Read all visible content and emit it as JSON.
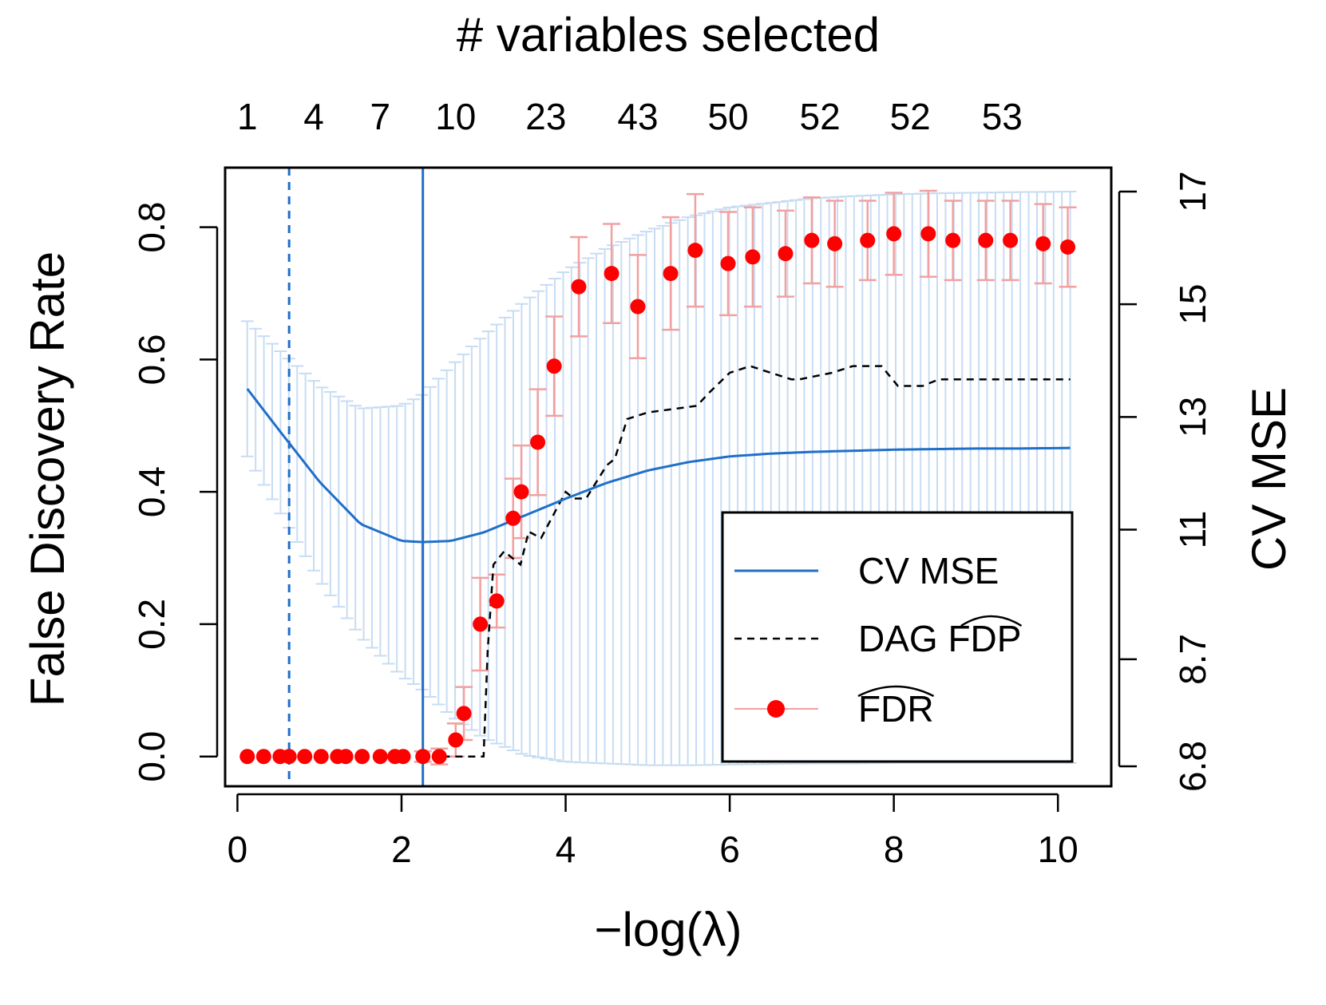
{
  "chart_data": {
    "type": "line",
    "title": "# variables selected",
    "xlabel": "−log(λ)",
    "ylabel_left": "False Discovery Rate",
    "ylabel_right": "CV MSE",
    "xlim": [
      -0.15,
      10.65
    ],
    "ylim_left": [
      -0.045,
      0.89
    ],
    "ylim_right": [
      6.8,
      17
    ],
    "x_ticks": [
      {
        "value": 0,
        "label": "0"
      },
      {
        "value": 2,
        "label": "2"
      },
      {
        "value": 4,
        "label": "4"
      },
      {
        "value": 6,
        "label": "6"
      },
      {
        "value": 8,
        "label": "8"
      },
      {
        "value": 10,
        "label": "10"
      }
    ],
    "y_ticks_left": [
      {
        "value": 0.0,
        "label": "0.0"
      },
      {
        "value": 0.2,
        "label": "0.2"
      },
      {
        "value": 0.4,
        "label": "0.4"
      },
      {
        "value": 0.6,
        "label": "0.6"
      },
      {
        "value": 0.8,
        "label": "0.8"
      }
    ],
    "y_ticks_right": [
      {
        "value": 6.8,
        "label": "6.8"
      },
      {
        "value": 8.7,
        "label": "8.7"
      },
      {
        "value": 11,
        "label": "11"
      },
      {
        "value": 13,
        "label": "13"
      },
      {
        "value": 15,
        "label": "15"
      },
      {
        "value": 17,
        "label": "17"
      }
    ],
    "top_ticks": [
      {
        "value": 0.12,
        "label": "1"
      },
      {
        "value": 0.93,
        "label": "4"
      },
      {
        "value": 1.74,
        "label": "7"
      },
      {
        "value": 2.66,
        "label": "10"
      },
      {
        "value": 3.76,
        "label": "23"
      },
      {
        "value": 4.88,
        "label": "43"
      },
      {
        "value": 5.98,
        "label": "50"
      },
      {
        "value": 7.1,
        "label": "52"
      },
      {
        "value": 8.2,
        "label": "52"
      },
      {
        "value": 9.32,
        "label": "53"
      }
    ],
    "vlines": [
      {
        "x": 0.63,
        "style": "dashed",
        "color": "#1f6fc8"
      },
      {
        "x": 2.26,
        "style": "solid",
        "color": "#1f6fc8"
      }
    ],
    "series": [
      {
        "name": "CV MSE",
        "type": "line",
        "axis": "right",
        "color": "#1f6fc8",
        "x": [
          0.12,
          0.5,
          1.0,
          1.5,
          2.0,
          2.26,
          2.6,
          3.0,
          3.5,
          4.0,
          4.5,
          5.0,
          5.5,
          6.0,
          6.5,
          7.0,
          7.5,
          8.0,
          8.5,
          9.0,
          9.5,
          10.15
        ],
        "y": [
          13.5,
          12.78,
          11.85,
          11.1,
          10.8,
          10.78,
          10.8,
          10.95,
          11.25,
          11.55,
          11.83,
          12.05,
          12.2,
          12.3,
          12.35,
          12.38,
          12.4,
          12.42,
          12.43,
          12.44,
          12.44,
          12.45
        ],
        "band_upper": [
          14.7,
          14.2,
          13.55,
          13.15,
          13.2,
          13.4,
          13.9,
          14.45,
          15.05,
          15.6,
          16.0,
          16.3,
          16.55,
          16.72,
          16.8,
          16.88,
          16.92,
          16.95,
          16.97,
          16.98,
          16.99,
          17.0
        ],
        "band_lower": [
          12.3,
          11.35,
          10.1,
          9.1,
          8.4,
          8.15,
          7.7,
          7.3,
          7.0,
          6.88,
          6.85,
          6.82,
          6.82,
          6.83,
          6.84,
          6.85,
          6.85,
          6.86,
          6.86,
          6.86,
          6.86,
          6.86
        ]
      },
      {
        "name": "DAG FDP",
        "type": "step",
        "axis": "left",
        "color": "#000000",
        "x": [
          2.5,
          3.0,
          3.05,
          3.12,
          3.25,
          3.45,
          3.55,
          3.7,
          4.0,
          4.1,
          4.25,
          4.5,
          4.6,
          4.75,
          5.0,
          5.6,
          5.75,
          6.0,
          6.25,
          6.5,
          6.75,
          6.85,
          7.25,
          7.5,
          7.85,
          8.05,
          8.15,
          8.35,
          8.55,
          10.15
        ],
        "y": [
          0.0,
          0.0,
          0.16,
          0.29,
          0.31,
          0.29,
          0.34,
          0.33,
          0.4,
          0.39,
          0.39,
          0.44,
          0.45,
          0.51,
          0.52,
          0.53,
          0.55,
          0.58,
          0.59,
          0.58,
          0.57,
          0.57,
          0.58,
          0.59,
          0.59,
          0.56,
          0.56,
          0.56,
          0.57,
          0.57
        ]
      },
      {
        "name": "FDR",
        "type": "scatter",
        "axis": "left",
        "color": "#ff0000",
        "x": [
          0.12,
          0.32,
          0.52,
          0.63,
          0.82,
          1.02,
          1.22,
          1.32,
          1.52,
          1.74,
          1.92,
          2.02,
          2.26,
          2.46,
          2.66,
          2.76,
          2.96,
          3.16,
          3.36,
          3.46,
          3.66,
          3.86,
          4.16,
          4.56,
          4.88,
          5.28,
          5.58,
          5.98,
          6.28,
          6.68,
          7.0,
          7.28,
          7.68,
          8.0,
          8.42,
          8.72,
          9.12,
          9.42,
          9.82,
          10.12
        ],
        "y": [
          0.0,
          0.0,
          0.0,
          0.0,
          0.0,
          0.0,
          0.0,
          0.0,
          0.0,
          0.0,
          0.0,
          0.0,
          0.0,
          0.0,
          0.025,
          0.065,
          0.2,
          0.235,
          0.36,
          0.4,
          0.475,
          0.59,
          0.71,
          0.73,
          0.68,
          0.73,
          0.765,
          0.745,
          0.755,
          0.76,
          0.78,
          0.775,
          0.78,
          0.79,
          0.79,
          0.78,
          0.78,
          0.78,
          0.775,
          0.77
        ],
        "err": [
          0.0,
          0.0,
          0.0,
          0.0,
          0.0,
          0.0,
          0.0,
          0.0,
          0.0,
          0.0,
          0.0,
          0.0,
          0.008,
          0.012,
          0.025,
          0.04,
          0.07,
          0.04,
          0.06,
          0.07,
          0.08,
          0.075,
          0.075,
          0.075,
          0.078,
          0.085,
          0.085,
          0.078,
          0.075,
          0.065,
          0.065,
          0.065,
          0.06,
          0.062,
          0.065,
          0.06,
          0.06,
          0.06,
          0.06,
          0.06
        ]
      }
    ],
    "legend": {
      "placement": "bottom-right",
      "entries": [
        {
          "label": "CV MSE",
          "kind": "line",
          "color": "#1f6fc8"
        },
        {
          "label": "DAG FDP",
          "kind": "dashed",
          "color": "#000000",
          "hat": "FDP"
        },
        {
          "label": "FDR",
          "kind": "point",
          "color": "#ff0000",
          "hat": "FDR"
        }
      ]
    }
  }
}
